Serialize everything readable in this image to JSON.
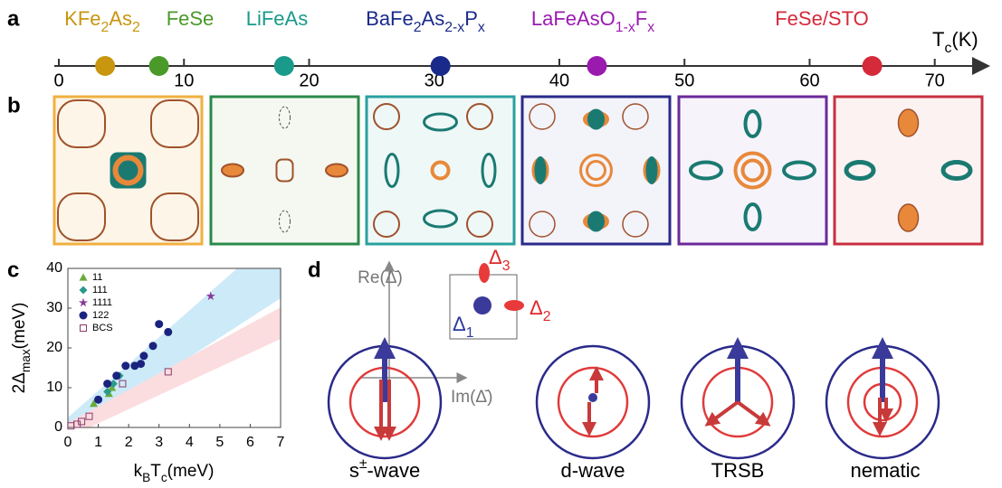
{
  "panel_labels": [
    "a",
    "b",
    "c",
    "d"
  ],
  "chart_data": [
    {
      "type": "dot",
      "xlabel": "Tc(K)",
      "xlim": [
        0,
        74
      ],
      "xticks": [
        0,
        10,
        20,
        30,
        40,
        50,
        60,
        70
      ],
      "series": [
        {
          "name": "KFe2As2",
          "color": "#c8960f",
          "values": [
            3.7
          ]
        },
        {
          "name": "FeSe",
          "color": "#4a9a2a",
          "values": [
            8
          ]
        },
        {
          "name": "LiFeAs",
          "color": "#1a9a8a",
          "values": [
            18
          ]
        },
        {
          "name": "BaFe2As2-xPx",
          "color": "#1a2a8a",
          "values": [
            30.5
          ]
        },
        {
          "name": "LaFeAsO1-xFx",
          "color": "#9a1ab0",
          "values": [
            43
          ]
        },
        {
          "name": "FeSe/STO",
          "color": "#d42a3a",
          "values": [
            65
          ]
        }
      ]
    },
    {
      "type": "scatter",
      "xlabel": "kBTc(meV)",
      "ylabel": "2Δmax(meV)",
      "xlim": [
        0,
        7
      ],
      "ylim": [
        0,
        40
      ],
      "xticks": [
        0,
        1,
        2,
        3,
        4,
        5,
        6,
        7
      ],
      "yticks": [
        0,
        10,
        20,
        30,
        40
      ],
      "series": [
        {
          "name": "11",
          "color": "#6aaa3a",
          "marker": "triangle",
          "x": [
            0.85,
            1.35,
            1.45
          ],
          "values": [
            6,
            8.5,
            10
          ]
        },
        {
          "name": "111",
          "color": "#2a9a8a",
          "marker": "diamond",
          "x": [
            1.3,
            1.5,
            1.7
          ],
          "values": [
            9,
            11,
            13
          ]
        },
        {
          "name": "1111",
          "color": "#8a3a9a",
          "marker": "star",
          "x": [
            4.7
          ],
          "values": [
            33
          ]
        },
        {
          "name": "122",
          "color": "#1a237e",
          "marker": "circle",
          "x": [
            1.0,
            1.3,
            1.6,
            1.9,
            2.2,
            2.4,
            2.5,
            2.8,
            3.0,
            3.3
          ],
          "values": [
            7,
            11,
            13,
            15.5,
            15.5,
            16,
            18,
            20.5,
            26,
            24
          ]
        },
        {
          "name": "BCS",
          "color": "#8a3a6a",
          "marker": "square",
          "x": [
            0.1,
            0.3,
            0.45,
            0.7,
            1.8,
            3.3
          ],
          "values": [
            0.4,
            0.8,
            1.5,
            2.8,
            11,
            14
          ]
        }
      ]
    }
  ],
  "diagram": {
    "re_axis": "Re(Δ̄)",
    "im_axis": "Im(Δ̄)",
    "gaps": [
      "Δ1",
      "Δ2",
      "Δ3"
    ],
    "states": [
      "s±-wave",
      "d-wave",
      "TRSB",
      "nematic"
    ]
  }
}
